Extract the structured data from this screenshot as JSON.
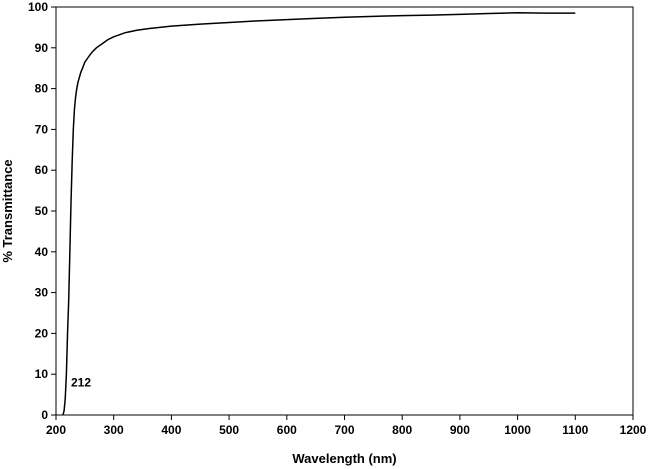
{
  "chart_data": {
    "type": "line",
    "title": "",
    "xlabel": "Wavelength (nm)",
    "ylabel": "% Transmittance",
    "xlim": [
      200,
      1200
    ],
    "ylim": [
      0,
      100
    ],
    "x_ticks": [
      200,
      300,
      400,
      500,
      600,
      700,
      800,
      900,
      1000,
      1100,
      1200
    ],
    "y_ticks": [
      0,
      10,
      20,
      30,
      40,
      50,
      60,
      70,
      80,
      90,
      100
    ],
    "x_tick_labels": [
      "200",
      "300",
      "400",
      "500",
      "600",
      "700",
      "800",
      "900",
      "1000",
      "1100",
      "1200"
    ],
    "y_tick_labels": [
      "0",
      "10",
      "20",
      "30",
      "40",
      "50",
      "60",
      "70",
      "80",
      "90",
      "100"
    ],
    "grid": false,
    "legend": "none",
    "line_color": "#000000",
    "annotations": [
      {
        "text": "212",
        "x": 226,
        "y": 8
      }
    ],
    "series": [
      {
        "x": [
          212,
          214,
          216,
          218,
          220,
          222,
          224,
          226,
          228,
          230,
          232,
          234,
          236,
          238,
          240,
          243,
          246,
          250,
          255,
          260,
          265,
          270,
          280,
          290,
          300,
          320,
          340,
          360,
          380,
          400,
          450,
          500,
          550,
          600,
          650,
          700,
          750,
          800,
          850,
          900,
          950,
          1000,
          1050,
          1100
        ],
        "y": [
          0,
          1,
          4,
          10,
          20,
          28,
          40,
          52,
          62,
          70,
          75,
          78,
          80,
          81.5,
          82.5,
          84,
          85,
          86.5,
          87.5,
          88.5,
          89.3,
          90,
          91,
          92,
          92.7,
          93.7,
          94.3,
          94.7,
          95,
          95.3,
          95.8,
          96.2,
          96.6,
          96.9,
          97.2,
          97.5,
          97.7,
          97.9,
          98,
          98.2,
          98.4,
          98.6,
          98.5,
          98.5
        ]
      }
    ]
  }
}
